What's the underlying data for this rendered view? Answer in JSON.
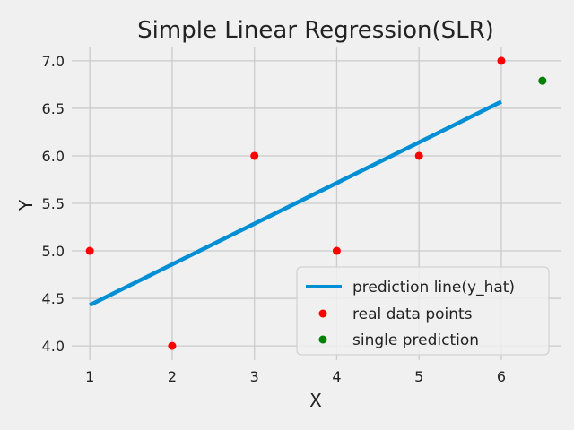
{
  "chart_data": {
    "type": "scatter",
    "title": "Simple Linear Regression(SLR)",
    "xlabel": "X",
    "ylabel": "Y",
    "xlim": [
      0.78,
      6.72
    ],
    "ylim": [
      3.85,
      7.15
    ],
    "xticks": [
      1,
      2,
      3,
      4,
      5,
      6
    ],
    "yticks": [
      4.0,
      4.5,
      5.0,
      5.5,
      6.0,
      6.5,
      7.0
    ],
    "xtick_labels": [
      "1",
      "2",
      "3",
      "4",
      "5",
      "6"
    ],
    "ytick_labels": [
      "4.0",
      "4.5",
      "5.0",
      "5.5",
      "6.0",
      "6.5",
      "7.0"
    ],
    "grid": true,
    "legend_position": "lower-right",
    "series": [
      {
        "name": "prediction line(y_hat)",
        "kind": "line",
        "color": "#008fd5",
        "x": [
          1,
          6
        ],
        "y": [
          4.43,
          6.57
        ]
      },
      {
        "name": "real data points",
        "kind": "scatter",
        "color": "#ff0000",
        "x": [
          1,
          2,
          3,
          4,
          5,
          6
        ],
        "y": [
          5,
          4,
          6,
          5,
          6,
          7
        ]
      },
      {
        "name": "single prediction",
        "kind": "scatter",
        "color": "#008000",
        "x": [
          6.5
        ],
        "y": [
          6.79
        ]
      }
    ]
  }
}
